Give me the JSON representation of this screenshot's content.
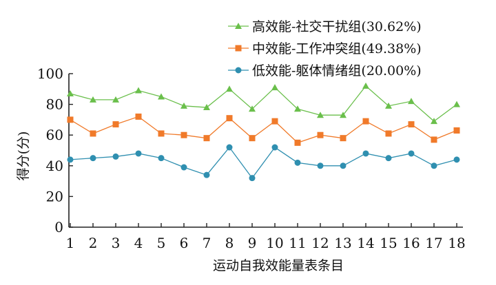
{
  "chart_data": {
    "type": "line",
    "title": "",
    "xlabel": "运动自我效能量表条目",
    "ylabel": "得分(分)",
    "ylim": [
      0,
      100
    ],
    "yticks": [
      0,
      20,
      40,
      60,
      80,
      100
    ],
    "grid": false,
    "legend_position": "top-right",
    "categories": [
      "1",
      "2",
      "3",
      "4",
      "5",
      "6",
      "7",
      "8",
      "9",
      "10",
      "11",
      "12",
      "13",
      "14",
      "15",
      "16",
      "17",
      "18"
    ],
    "series": [
      {
        "name": "高效能-社交干扰组(30.62%)",
        "color": "#6abf4b",
        "marker": "triangle",
        "values": [
          87,
          83,
          83,
          89,
          85,
          79,
          78,
          90,
          77,
          91,
          77,
          73,
          73,
          92,
          79,
          82,
          69,
          80
        ]
      },
      {
        "name": "中效能-工作冲突组(49.38%)",
        "color": "#f07a2a",
        "marker": "square",
        "values": [
          70,
          61,
          67,
          72,
          61,
          60,
          58,
          71,
          58,
          69,
          55,
          60,
          58,
          69,
          61,
          67,
          57,
          63
        ]
      },
      {
        "name": "低效能-躯体情绪组(20.00%)",
        "color": "#2f8fb0",
        "marker": "circle",
        "values": [
          44,
          45,
          46,
          48,
          45,
          39,
          34,
          52,
          32,
          52,
          42,
          40,
          40,
          48,
          45,
          48,
          40,
          44
        ]
      }
    ]
  }
}
